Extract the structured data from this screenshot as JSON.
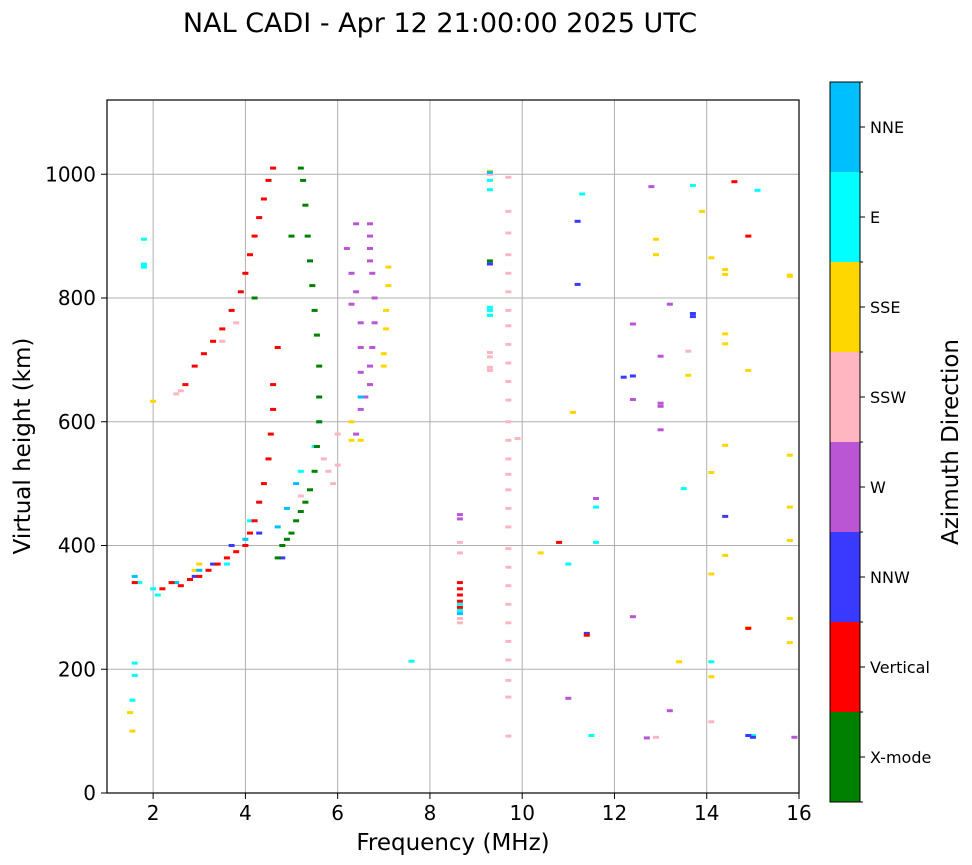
{
  "chart_data": {
    "type": "scatter",
    "title": "NAL CADI - Apr 12 21:00:00 2025 UTC",
    "xlabel": "Frequency (MHz)",
    "ylabel": "Virtual height (km)",
    "xlim": [
      1,
      16
    ],
    "ylim": [
      0,
      1120
    ],
    "xticks": [
      2,
      4,
      6,
      8,
      10,
      12,
      14,
      16
    ],
    "yticks": [
      0,
      200,
      400,
      600,
      800,
      1000
    ],
    "grid": true,
    "colorbar": {
      "label": "Azimuth Direction",
      "categories": [
        {
          "name": "X-mode",
          "color": "#008000"
        },
        {
          "name": "Vertical",
          "color": "#ff0000"
        },
        {
          "name": "NNW",
          "color": "#3a3aff"
        },
        {
          "name": "W",
          "color": "#ba55d3"
        },
        {
          "name": "SSW",
          "color": "#ffb6c1"
        },
        {
          "name": "SSE",
          "color": "#ffd700"
        },
        {
          "name": "E",
          "color": "#00ffff"
        },
        {
          "name": "NNE",
          "color": "#00bfff"
        }
      ]
    },
    "series": [
      {
        "name": "X-mode",
        "points": [
          [
            4.7,
            380
          ],
          [
            4.8,
            400
          ],
          [
            4.9,
            410
          ],
          [
            5.0,
            420
          ],
          [
            5.1,
            440
          ],
          [
            5.2,
            455
          ],
          [
            5.3,
            470
          ],
          [
            5.4,
            490
          ],
          [
            5.5,
            520
          ],
          [
            5.55,
            560
          ],
          [
            5.6,
            600
          ],
          [
            5.6,
            640
          ],
          [
            5.6,
            690
          ],
          [
            5.55,
            740
          ],
          [
            5.5,
            780
          ],
          [
            5.45,
            820
          ],
          [
            5.4,
            860
          ],
          [
            5.35,
            900
          ],
          [
            5.3,
            950
          ],
          [
            5.25,
            990
          ],
          [
            5.2,
            1010
          ],
          [
            4.2,
            800
          ],
          [
            5.0,
            900
          ],
          [
            9.3,
            860
          ]
        ]
      },
      {
        "name": "Vertical",
        "points": [
          [
            1.6,
            340
          ],
          [
            2.2,
            330
          ],
          [
            2.4,
            340
          ],
          [
            2.6,
            335
          ],
          [
            2.8,
            345
          ],
          [
            3.0,
            350
          ],
          [
            3.2,
            360
          ],
          [
            3.4,
            370
          ],
          [
            3.6,
            380
          ],
          [
            3.8,
            390
          ],
          [
            4.0,
            400
          ],
          [
            4.1,
            420
          ],
          [
            4.2,
            440
          ],
          [
            4.3,
            470
          ],
          [
            4.4,
            500
          ],
          [
            4.5,
            540
          ],
          [
            4.55,
            580
          ],
          [
            4.6,
            620
          ],
          [
            4.6,
            660
          ],
          [
            2.7,
            660
          ],
          [
            2.9,
            690
          ],
          [
            3.1,
            710
          ],
          [
            3.3,
            730
          ],
          [
            3.5,
            750
          ],
          [
            3.7,
            780
          ],
          [
            3.9,
            810
          ],
          [
            4.0,
            840
          ],
          [
            4.1,
            870
          ],
          [
            4.2,
            900
          ],
          [
            4.3,
            930
          ],
          [
            4.4,
            960
          ],
          [
            4.5,
            990
          ],
          [
            4.6,
            1010
          ],
          [
            4.7,
            720
          ],
          [
            8.65,
            330
          ],
          [
            8.65,
            320
          ],
          [
            8.65,
            310
          ],
          [
            8.65,
            300
          ],
          [
            8.65,
            340
          ],
          [
            10.8,
            405
          ],
          [
            11.4,
            255
          ],
          [
            14.6,
            988
          ],
          [
            14.9,
            900
          ],
          [
            14.9,
            266
          ]
        ]
      },
      {
        "name": "NNW",
        "points": [
          [
            2.9,
            350
          ],
          [
            3.3,
            370
          ],
          [
            3.7,
            400
          ],
          [
            4.3,
            420
          ],
          [
            4.8,
            380
          ],
          [
            11.2,
            822
          ],
          [
            11.2,
            924
          ],
          [
            11.4,
            258
          ],
          [
            12.2,
            672
          ],
          [
            12.4,
            674
          ],
          [
            13.7,
            775
          ],
          [
            13.7,
            770
          ],
          [
            14.4,
            447
          ],
          [
            14.9,
            93
          ],
          [
            15.0,
            90
          ],
          [
            9.3,
            855
          ]
        ]
      },
      {
        "name": "W",
        "points": [
          [
            6.7,
            920
          ],
          [
            6.7,
            900
          ],
          [
            6.7,
            880
          ],
          [
            6.7,
            860
          ],
          [
            6.75,
            840
          ],
          [
            6.8,
            800
          ],
          [
            6.8,
            760
          ],
          [
            6.75,
            720
          ],
          [
            6.7,
            690
          ],
          [
            6.7,
            660
          ],
          [
            6.6,
            640
          ],
          [
            6.5,
            620
          ],
          [
            6.4,
            580
          ],
          [
            6.4,
            920
          ],
          [
            6.2,
            880
          ],
          [
            6.3,
            840
          ],
          [
            6.4,
            810
          ],
          [
            6.3,
            790
          ],
          [
            6.5,
            760
          ],
          [
            6.5,
            720
          ],
          [
            6.5,
            680
          ],
          [
            8.65,
            450
          ],
          [
            8.65,
            443
          ],
          [
            11.0,
            153
          ],
          [
            11.6,
            476
          ],
          [
            12.4,
            285
          ],
          [
            12.4,
            636
          ],
          [
            12.4,
            758
          ],
          [
            12.7,
            89
          ],
          [
            12.8,
            980
          ],
          [
            13.0,
            630
          ],
          [
            13.0,
            625
          ],
          [
            13.0,
            587
          ],
          [
            13.0,
            706
          ],
          [
            13.2,
            133
          ],
          [
            13.2,
            790
          ],
          [
            15.9,
            90
          ]
        ]
      },
      {
        "name": "SSW",
        "points": [
          [
            2.5,
            645
          ],
          [
            2.6,
            650
          ],
          [
            3.5,
            730
          ],
          [
            3.8,
            760
          ],
          [
            5.7,
            540
          ],
          [
            5.8,
            520
          ],
          [
            5.9,
            500
          ],
          [
            6.0,
            530
          ],
          [
            6.0,
            580
          ],
          [
            5.2,
            480
          ],
          [
            8.65,
            405
          ],
          [
            8.65,
            388
          ],
          [
            8.65,
            275
          ],
          [
            8.65,
            282
          ],
          [
            9.3,
            1000
          ],
          [
            9.3,
            712
          ],
          [
            9.3,
            705
          ],
          [
            9.3,
            688
          ],
          [
            9.3,
            683
          ],
          [
            9.7,
            995
          ],
          [
            9.7,
            940
          ],
          [
            9.7,
            905
          ],
          [
            9.7,
            870
          ],
          [
            9.7,
            840
          ],
          [
            9.7,
            810
          ],
          [
            9.7,
            780
          ],
          [
            9.7,
            755
          ],
          [
            9.7,
            725
          ],
          [
            9.7,
            695
          ],
          [
            9.7,
            665
          ],
          [
            9.7,
            635
          ],
          [
            9.7,
            600
          ],
          [
            9.7,
            570
          ],
          [
            9.7,
            540
          ],
          [
            9.7,
            515
          ],
          [
            9.7,
            490
          ],
          [
            9.7,
            460
          ],
          [
            9.7,
            430
          ],
          [
            9.7,
            395
          ],
          [
            9.7,
            365
          ],
          [
            9.7,
            335
          ],
          [
            9.7,
            305
          ],
          [
            9.7,
            275
          ],
          [
            9.7,
            245
          ],
          [
            9.7,
            215
          ],
          [
            9.7,
            182
          ],
          [
            9.7,
            155
          ],
          [
            9.7,
            92
          ],
          [
            9.9,
            573
          ],
          [
            12.9,
            90
          ],
          [
            13.6,
            714
          ],
          [
            14.1,
            115
          ]
        ]
      },
      {
        "name": "SSE",
        "points": [
          [
            1.5,
            130
          ],
          [
            1.55,
            100
          ],
          [
            2.0,
            633
          ],
          [
            2.9,
            360
          ],
          [
            3.0,
            370
          ],
          [
            6.3,
            600
          ],
          [
            6.3,
            570
          ],
          [
            6.5,
            570
          ],
          [
            7.1,
            850
          ],
          [
            7.1,
            820
          ],
          [
            7.05,
            780
          ],
          [
            7.05,
            750
          ],
          [
            7.0,
            710
          ],
          [
            7.0,
            690
          ],
          [
            9.3,
            1005
          ],
          [
            10.4,
            388
          ],
          [
            11.1,
            615
          ],
          [
            12.9,
            895
          ],
          [
            12.9,
            870
          ],
          [
            13.4,
            212
          ],
          [
            13.6,
            675
          ],
          [
            13.9,
            940
          ],
          [
            14.1,
            865
          ],
          [
            14.1,
            518
          ],
          [
            14.1,
            354
          ],
          [
            14.1,
            188
          ],
          [
            14.4,
            846
          ],
          [
            14.4,
            838
          ],
          [
            14.4,
            742
          ],
          [
            14.4,
            726
          ],
          [
            14.4,
            562
          ],
          [
            14.4,
            384
          ],
          [
            14.9,
            683
          ],
          [
            14.9,
            267
          ],
          [
            15.8,
            837
          ],
          [
            15.8,
            835
          ],
          [
            15.8,
            546
          ],
          [
            15.8,
            462
          ],
          [
            15.8,
            408
          ],
          [
            15.8,
            282
          ],
          [
            15.8,
            243
          ]
        ]
      },
      {
        "name": "E",
        "points": [
          [
            1.6,
            210
          ],
          [
            1.6,
            190
          ],
          [
            1.55,
            150
          ],
          [
            1.8,
            895
          ],
          [
            1.8,
            855
          ],
          [
            1.8,
            850
          ],
          [
            1.7,
            340
          ],
          [
            2.0,
            330
          ],
          [
            2.1,
            320
          ],
          [
            3.6,
            370
          ],
          [
            4.1,
            440
          ],
          [
            5.2,
            520
          ],
          [
            5.5,
            560
          ],
          [
            5.6,
            600
          ],
          [
            7.6,
            213
          ],
          [
            9.3,
            990
          ],
          [
            9.3,
            975
          ],
          [
            9.3,
            785
          ],
          [
            9.3,
            780
          ],
          [
            9.3,
            772
          ],
          [
            9.3,
            772
          ],
          [
            8.65,
            295
          ],
          [
            8.65,
            305
          ],
          [
            11.0,
            370
          ],
          [
            11.6,
            405
          ],
          [
            11.6,
            462
          ],
          [
            11.5,
            93
          ],
          [
            11.3,
            968
          ],
          [
            13.5,
            492
          ],
          [
            13.7,
            982
          ],
          [
            14.1,
            212
          ],
          [
            15.1,
            974
          ],
          [
            15.0,
            93
          ]
        ]
      },
      {
        "name": "NNE",
        "points": [
          [
            1.6,
            350
          ],
          [
            2.5,
            340
          ],
          [
            3.0,
            360
          ],
          [
            4.0,
            410
          ],
          [
            4.7,
            430
          ],
          [
            4.9,
            460
          ],
          [
            5.1,
            500
          ],
          [
            6.5,
            640
          ],
          [
            8.65,
            290
          ],
          [
            9.3,
            1003
          ]
        ]
      }
    ]
  }
}
